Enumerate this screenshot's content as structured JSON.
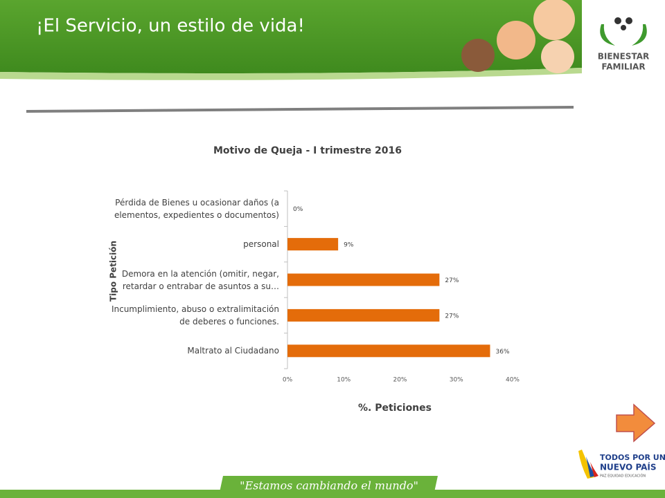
{
  "header": {
    "title": "¡El Servicio, un estilo de vida!",
    "logo_line1": "BIENESTAR",
    "logo_line2": "FAMILIAR"
  },
  "chart_data": {
    "type": "bar",
    "orientation": "horizontal",
    "title": "Motivo de Queja - I trimestre 2016",
    "y_label": "Tipo Petición",
    "x_label": "%. Peticiones",
    "categories": [
      "Pérdida de Bienes u ocasionar daños (a elementos, expedientes o documentos)",
      "personal",
      "Demora en la atención (omitir, negar, retardar o entrabar de asuntos a su…",
      "Incumplimiento, abuso o extralimitación de deberes o funciones.",
      "Maltrato al Ciudadano"
    ],
    "values": [
      0,
      9,
      27,
      27,
      36
    ],
    "value_labels": [
      "0%",
      "9%",
      "27%",
      "27%",
      "36%"
    ],
    "color": "#e46c0a",
    "xlim": [
      0,
      40
    ],
    "xticks": [
      {
        "value": 0,
        "label": "0%"
      },
      {
        "value": 10,
        "label": "10%"
      },
      {
        "value": 20,
        "label": "20%"
      },
      {
        "value": 30,
        "label": "30%"
      },
      {
        "value": 40,
        "label": "40%"
      }
    ],
    "grid": false
  },
  "footer": {
    "slogan": "\"Estamos cambiando el mundo\"",
    "gov_line1": "TODOS POR UN",
    "gov_line2": "NUEVO PAÍS",
    "gov_line3": "PAZ  EQUIDAD  EDUCACIÓN"
  }
}
